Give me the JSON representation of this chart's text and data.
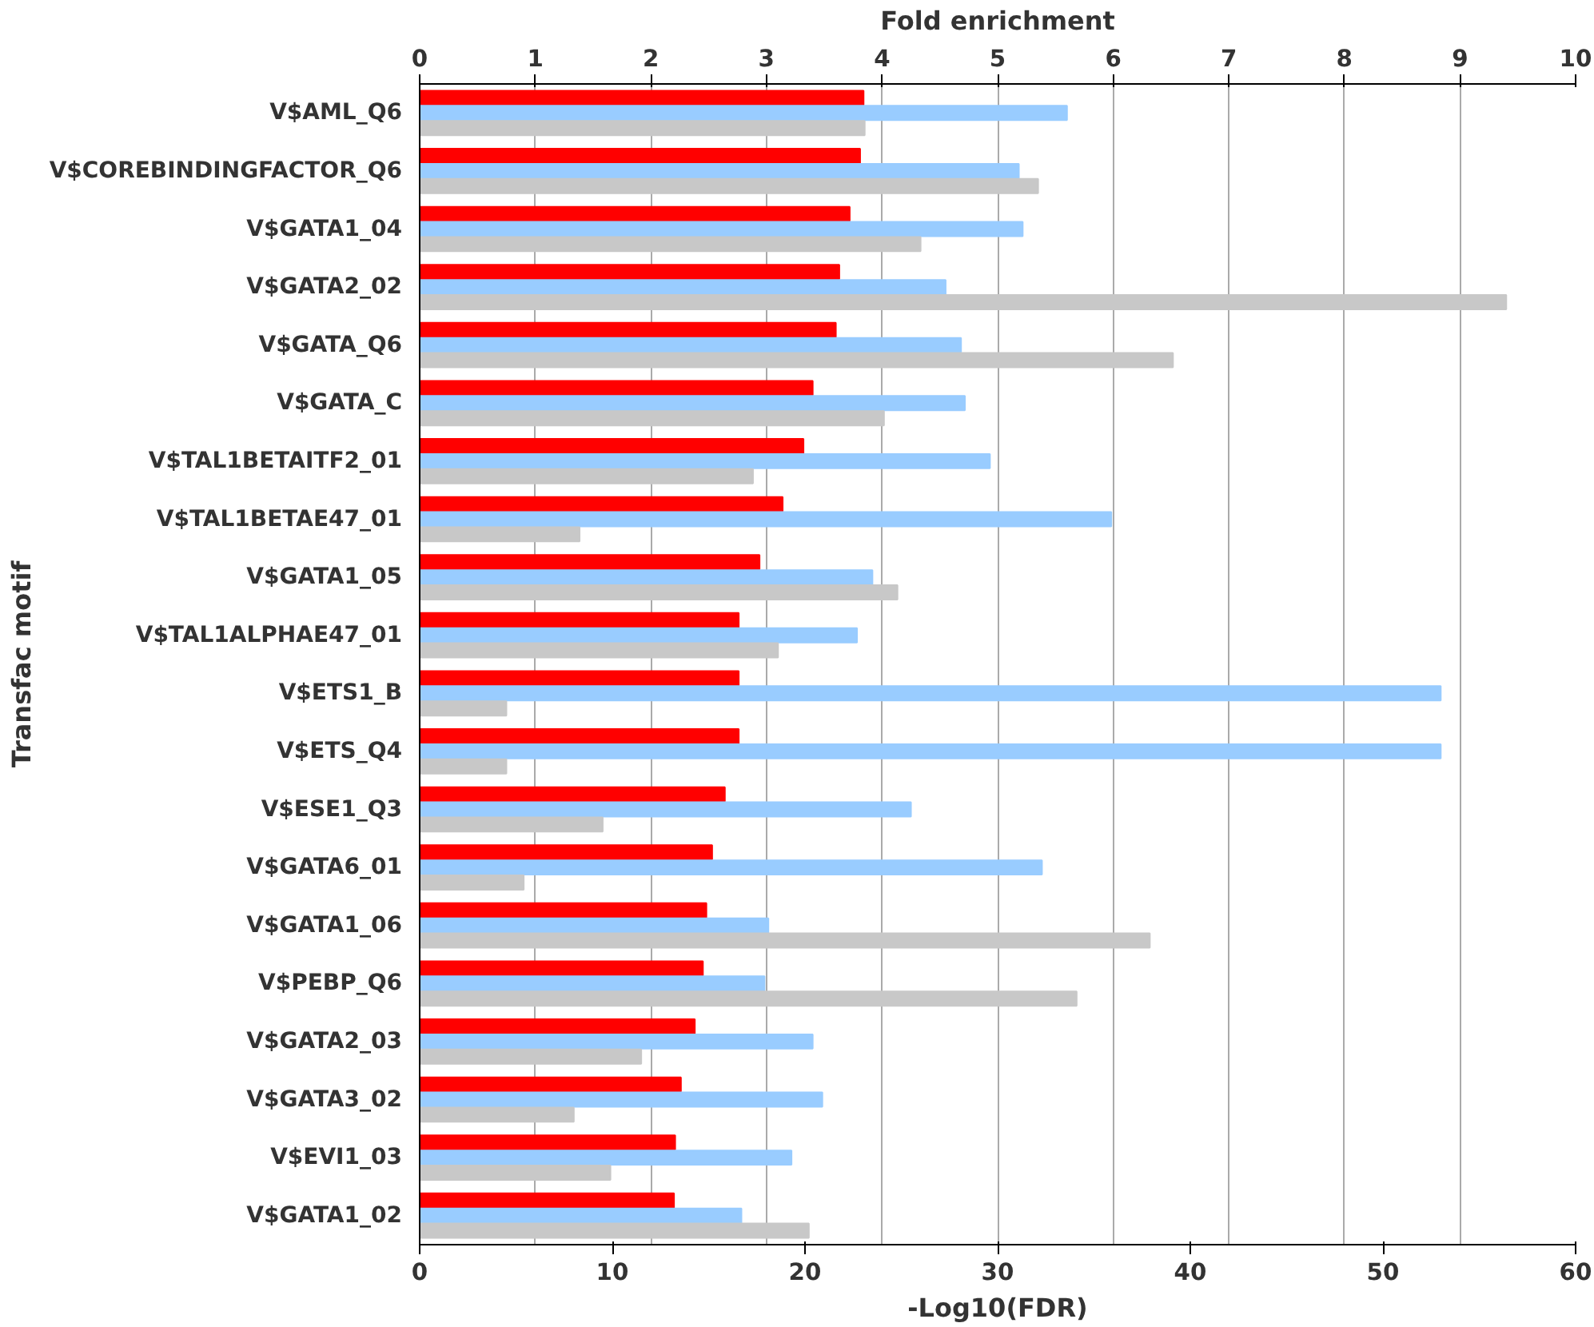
{
  "chart_data": {
    "type": "bar",
    "orientation": "horizontal",
    "xlabel": "-Log10(FDR)",
    "x2label": "Fold enrichment",
    "ylabel": "Transfac motif",
    "categories": [
      "V$AML_Q6",
      "V$COREBINDINGFACTOR_Q6",
      "V$GATA1_04",
      "V$GATA2_02",
      "V$GATA_Q6",
      "V$GATA_C",
      "V$TAL1BETAITF2_01",
      "V$TAL1BETAE47_01",
      "V$GATA1_05",
      "V$TAL1ALPHAE47_01",
      "V$ETS1_B",
      "V$ETS_Q4",
      "V$ESE1_Q3",
      "V$GATA6_01",
      "V$GATA1_06",
      "V$PEBP_Q6",
      "V$GATA2_03",
      "V$GATA3_02",
      "V$EVI1_03",
      "V$GATA1_02"
    ],
    "series": [
      {
        "color": "#ff0000",
        "axis": "x2",
        "values": [
          3.84,
          3.81,
          3.72,
          3.63,
          3.6,
          3.4,
          3.32,
          3.14,
          2.94,
          2.76,
          2.76,
          2.76,
          2.64,
          2.53,
          2.48,
          2.45,
          2.38,
          2.26,
          2.21,
          2.2
        ]
      },
      {
        "color": "#99ccff",
        "values": [
          33.6,
          31.1,
          31.3,
          27.3,
          28.1,
          28.3,
          29.6,
          35.9,
          23.5,
          22.7,
          53.0,
          53.0,
          25.5,
          32.3,
          18.1,
          17.9,
          20.4,
          20.9,
          19.3,
          16.7
        ]
      },
      {
        "color": "#c8c8c8",
        "values": [
          23.1,
          32.1,
          26.0,
          56.4,
          39.1,
          24.1,
          17.3,
          8.3,
          24.8,
          18.6,
          4.5,
          4.5,
          9.5,
          5.4,
          37.9,
          34.1,
          11.5,
          8.0,
          9.9,
          20.2
        ]
      }
    ],
    "xlim": [
      0,
      60
    ],
    "xticks": [
      0,
      10,
      20,
      30,
      40,
      50,
      60
    ],
    "x2lim": [
      0,
      10
    ],
    "x2ticks": [
      0,
      1,
      2,
      3,
      4,
      5,
      6,
      7,
      8,
      9,
      10
    ],
    "grid": "x"
  }
}
